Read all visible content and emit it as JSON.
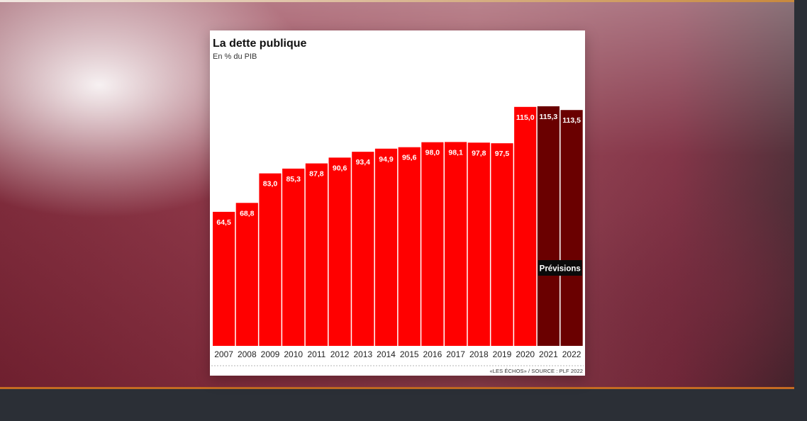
{
  "chart_data": {
    "type": "bar",
    "title": "La dette publique",
    "subtitle": "En % du PIB",
    "categories": [
      "2007",
      "2008",
      "2009",
      "2010",
      "2011",
      "2012",
      "2013",
      "2014",
      "2015",
      "2016",
      "2017",
      "2018",
      "2019",
      "2020",
      "2021",
      "2022"
    ],
    "values": [
      64.5,
      68.8,
      83.0,
      85.3,
      87.8,
      90.6,
      93.4,
      94.9,
      95.6,
      98.0,
      98.1,
      97.8,
      97.5,
      115.0,
      115.3,
      113.5
    ],
    "value_labels": [
      "64,5",
      "68,8",
      "83,0",
      "85,3",
      "87,8",
      "90,6",
      "93,4",
      "94,9",
      "95,6",
      "98,0",
      "98,1",
      "97,8",
      "97,5",
      "115,0",
      "115,3",
      "113,5"
    ],
    "forecast_categories": [
      "2021",
      "2022"
    ],
    "forecast_label": "Prévisions",
    "ylim": [
      0,
      125
    ],
    "grid": false,
    "source": "«LES ÉCHOS» / SOURCE : PLF 2022",
    "colors": {
      "actual": "#ff0000",
      "forecast": "#6a0000",
      "label_text": "#ffffff",
      "forecast_label_bg": "#0a0a0a"
    }
  }
}
